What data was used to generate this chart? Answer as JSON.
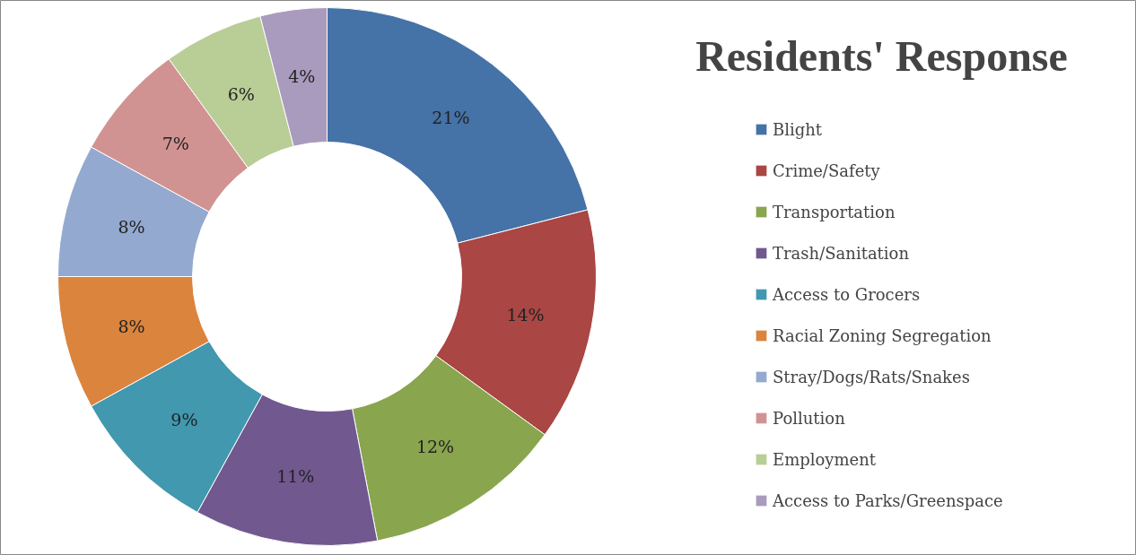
{
  "chart_data": {
    "type": "donut",
    "title": "Residents' Response",
    "categories": [
      "Blight",
      "Crime/Safety",
      "Transportation",
      "Trash/Sanitation",
      "Access to Grocers",
      "Racial Zoning Segregation",
      "Stray/Dogs/Rats/Snakes",
      "Pollution",
      "Employment",
      "Access to Parks/Greenspace"
    ],
    "values": [
      21,
      14,
      12,
      11,
      9,
      8,
      8,
      7,
      6,
      4
    ],
    "value_labels": [
      "21%",
      "14%",
      "12%",
      "11%",
      "9%",
      "8%",
      "8%",
      "7%",
      "6%",
      "4%"
    ],
    "colors": [
      "#4572a7",
      "#aa4643",
      "#89a54e",
      "#71588f",
      "#4198af",
      "#db843d",
      "#93a9cf",
      "#d19392",
      "#b9cd96",
      "#a99bbd"
    ],
    "legend": "right"
  }
}
